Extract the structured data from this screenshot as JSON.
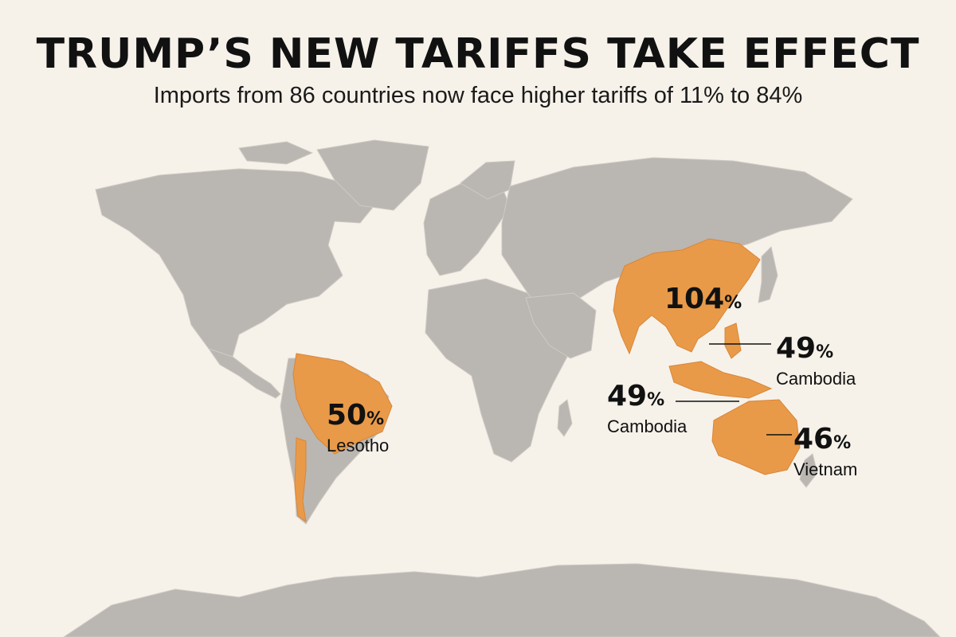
{
  "header": {
    "title": "TRUMP’S NEW TARIFFS TAKE EFFECT",
    "subtitle": "Imports from 86 countries now face higher tariffs of 11% to 84%"
  },
  "colors": {
    "background": "#f6f2ea",
    "land": "#bab6b1",
    "highlight": "#e99a48",
    "text": "#111111"
  },
  "callouts": [
    {
      "value": "104",
      "unit": "%",
      "name": ""
    },
    {
      "value": "49",
      "unit": "%",
      "name": "Cambodia"
    },
    {
      "value": "49",
      "unit": "%",
      "name": "Cambodia"
    },
    {
      "value": "46",
      "unit": "%",
      "name": "Vietnam"
    },
    {
      "value": "50",
      "unit": "%",
      "name": "Lesotho"
    }
  ]
}
